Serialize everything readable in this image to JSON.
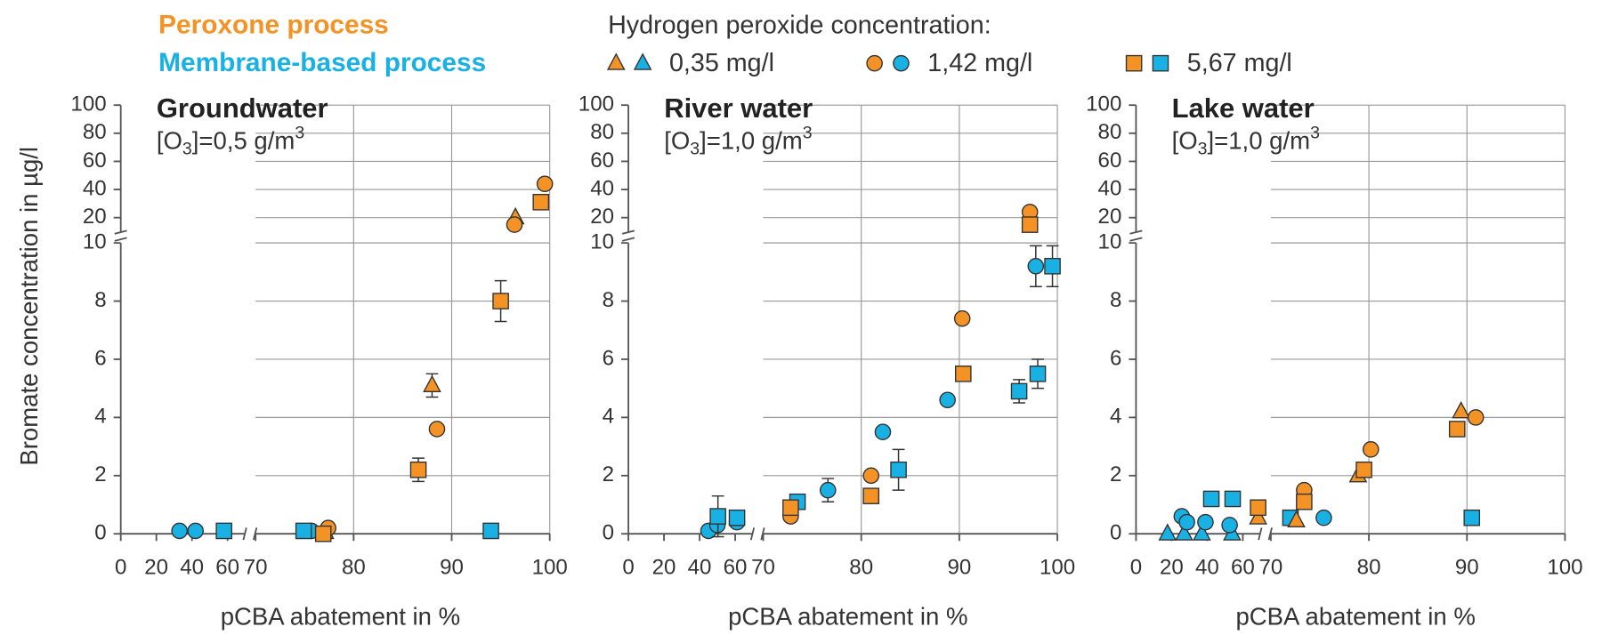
{
  "legend": {
    "processes": [
      {
        "name": "Peroxone process",
        "color": "#f39325"
      },
      {
        "name": "Membrane-based process",
        "color": "#19b1e3"
      }
    ],
    "title": "Hydrogen peroxide concentration:",
    "concentrations": [
      {
        "label": "0,35 mg/l",
        "marker": "triangle"
      },
      {
        "label": "1,42 mg/l",
        "marker": "circle"
      },
      {
        "label": "5,67 mg/l",
        "marker": "square"
      }
    ]
  },
  "chart_data": [
    {
      "type": "scatter",
      "title": "Groundwater",
      "subtitle": {
        "prefix": "[O",
        "sub": "3",
        "middle": "]=0,5 g/m",
        "sup": "3"
      },
      "ylabel": "Bromate concentration in µg/l",
      "xlabel": "pCBA abatement in %",
      "xlim": [
        [
          0,
          70
        ],
        [
          70,
          100
        ]
      ],
      "xticks": [
        [
          0,
          20,
          40,
          60
        ],
        [
          70,
          80,
          90,
          100
        ]
      ],
      "ylim": [
        [
          0,
          10
        ],
        [
          10,
          100
        ]
      ],
      "yticks": [
        [
          0,
          2,
          4,
          6,
          8,
          10
        ],
        [
          20,
          40,
          60,
          80,
          100
        ]
      ],
      "grid": true,
      "series": [
        {
          "color": "#19b1e3",
          "marker": "circle",
          "x": [
            33,
            42,
            75.7
          ],
          "values": [
            0.1,
            0.1,
            0.1
          ]
        },
        {
          "color": "#19b1e3",
          "marker": "square",
          "x": [
            58,
            74.9,
            94
          ],
          "values": [
            0.1,
            0.1,
            0.1
          ]
        },
        {
          "color": "#f39325",
          "marker": "triangle",
          "x": [
            77.1,
            88,
            96.5
          ],
          "values": [
            0.05,
            5.1,
            20
          ],
          "errors": [
            null,
            0.4,
            null
          ]
        },
        {
          "color": "#f39325",
          "marker": "circle",
          "x": [
            77.4,
            88.5,
            96.4,
            99.5
          ],
          "values": [
            0.2,
            3.6,
            15,
            44
          ]
        },
        {
          "color": "#f39325",
          "marker": "square",
          "x": [
            76.9,
            86.6,
            95,
            99.1
          ],
          "values": [
            0,
            2.2,
            8,
            31
          ],
          "errors": [
            null,
            0.4,
            0.7,
            null
          ]
        }
      ]
    },
    {
      "type": "scatter",
      "title": "River water",
      "subtitle": {
        "prefix": "[O",
        "sub": "3",
        "middle": "]=1,0 g/m",
        "sup": "3"
      },
      "xlabel": "pCBA abatement in %",
      "xlim": [
        [
          0,
          70
        ],
        [
          70,
          100
        ]
      ],
      "xticks": [
        [
          0,
          20,
          40,
          60
        ],
        [
          70,
          80,
          90,
          100
        ]
      ],
      "ylim": [
        [
          0,
          10
        ],
        [
          10,
          100
        ]
      ],
      "yticks": [
        [
          0,
          2,
          4,
          6,
          8,
          10
        ],
        [
          20,
          40,
          60,
          80,
          100
        ]
      ],
      "grid": true,
      "series": [
        {
          "color": "#19b1e3",
          "marker": "circle",
          "x": [
            45,
            50,
            61,
            76.6,
            82.2,
            88.8,
            97.8
          ],
          "values": [
            0.1,
            0.3,
            0.4,
            1.5,
            3.5,
            4.6,
            9.2
          ],
          "errors": [
            null,
            null,
            null,
            0.4,
            null,
            null,
            0.7
          ]
        },
        {
          "color": "#19b1e3",
          "marker": "square",
          "x": [
            50.3,
            61,
            73.5,
            83.8,
            96.1,
            98,
            99.5
          ],
          "values": [
            0.6,
            0.55,
            1.1,
            2.2,
            4.9,
            5.5,
            9.2
          ],
          "errors": [
            0.7,
            null,
            null,
            0.7,
            0.4,
            0.5,
            0.7
          ]
        },
        {
          "color": "#f39325",
          "marker": "circle",
          "x": [
            72.8,
            81,
            90.3,
            97.2
          ],
          "values": [
            0.6,
            2.0,
            7.4,
            24
          ]
        },
        {
          "color": "#f39325",
          "marker": "square",
          "x": [
            72.8,
            81,
            90.4,
            97.2
          ],
          "values": [
            0.9,
            1.3,
            5.5,
            15
          ]
        }
      ]
    },
    {
      "type": "scatter",
      "title": "Lake water",
      "subtitle": {
        "prefix": "[O",
        "sub": "3",
        "middle": "]=1,0 g/m",
        "sup": "3"
      },
      "xlabel": "pCBA abatement in %",
      "xlim": [
        [
          0,
          70
        ],
        [
          70,
          100
        ]
      ],
      "xticks": [
        [
          0,
          20,
          40,
          60
        ],
        [
          70,
          80,
          90,
          100
        ]
      ],
      "ylim": [
        [
          0,
          10
        ],
        [
          10,
          100
        ]
      ],
      "yticks": [
        [
          0,
          2,
          4,
          6,
          8,
          10
        ],
        [
          20,
          40,
          60,
          80,
          100
        ]
      ],
      "grid": true,
      "series": [
        {
          "color": "#19b1e3",
          "marker": "triangle",
          "x": [
            17.7,
            27,
            37,
            54
          ],
          "values": [
            0,
            0,
            0,
            0
          ]
        },
        {
          "color": "#19b1e3",
          "marker": "circle",
          "x": [
            25.7,
            28.6,
            39,
            52.6,
            75.4
          ],
          "values": [
            0.6,
            0.4,
            0.4,
            0.3,
            0.55
          ]
        },
        {
          "color": "#19b1e3",
          "marker": "square",
          "x": [
            42.3,
            54.3,
            72,
            90.5
          ],
          "values": [
            1.2,
            1.2,
            0.55,
            0.55
          ]
        },
        {
          "color": "#f39325",
          "marker": "triangle",
          "x": [
            68.6,
            72.6,
            78.9,
            89.4
          ],
          "values": [
            0.55,
            0.45,
            2.0,
            4.2
          ]
        },
        {
          "color": "#f39325",
          "marker": "circle",
          "x": [
            73.4,
            80.2,
            90.9
          ],
          "values": [
            1.5,
            2.9,
            4.0
          ]
        },
        {
          "color": "#f39325",
          "marker": "square",
          "x": [
            68.6,
            73.4,
            79.5,
            89
          ],
          "values": [
            0.9,
            1.1,
            2.2,
            3.6
          ]
        }
      ]
    }
  ]
}
